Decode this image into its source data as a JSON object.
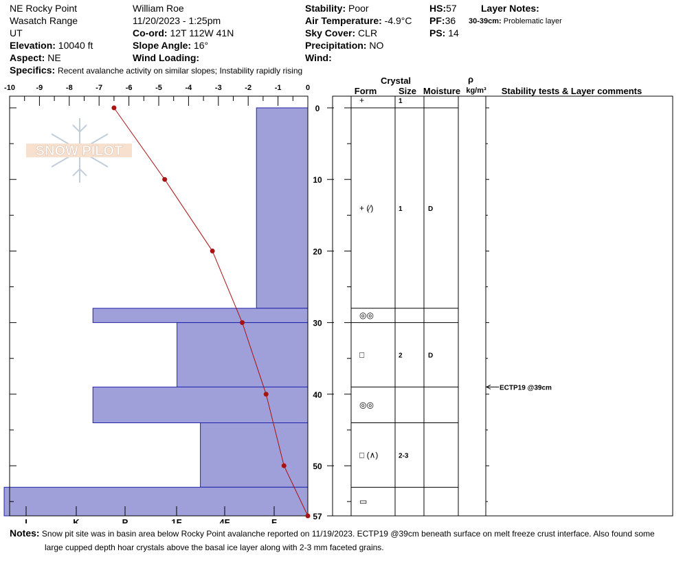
{
  "header": {
    "site": "NE Rocky Point",
    "range": "Wasatch Range",
    "state": "UT",
    "elevation_label": "Elevation:",
    "elevation": "10040 ft",
    "aspect_label": "Aspect:",
    "aspect": "NE",
    "observer": "William  Roe",
    "datetime": "11/20/2023 - 1:25pm",
    "coord_label": "Co-ord:",
    "coord": "12T 112W 41N",
    "slope_label": "Slope Angle:",
    "slope": "16°",
    "wind_loading_label": "Wind Loading:",
    "wind_loading": "",
    "stability_label": "Stability:",
    "stability": "Poor",
    "air_temp_label": "Air Temperature:",
    "air_temp": "-4.9°C",
    "sky_label": "Sky Cover:",
    "sky": "CLR",
    "precip_label": "Precipitation:",
    "precip": "NO",
    "wind_label": "Wind:",
    "wind": "",
    "hs_label": "HS:",
    "hs": "57",
    "pf_label": "PF:",
    "pf": "36",
    "ps_label": "PS:",
    "ps": "14",
    "layer_notes_label": "Layer Notes:",
    "layer_note_range": "30-39cm:",
    "layer_note_text": "Problematic layer",
    "specifics_label": "Specifics:",
    "specifics": "Recent avalanche activity on similar slopes; Instability rapidly rising"
  },
  "chart_data": {
    "type": "snow_profile",
    "temperature_profile": {
      "x_label_ticks": [
        "-10",
        "-9",
        "-8",
        "-7",
        "-6",
        "-5",
        "-4",
        "-3",
        "-2",
        "-1",
        "0"
      ],
      "xlim": [
        -10,
        0
      ],
      "depth_cm": [
        0,
        10,
        20,
        30,
        40,
        50,
        57
      ],
      "temp_c": [
        -6.5,
        -4.8,
        -3.2,
        -2.2,
        -1.4,
        -0.8,
        0
      ],
      "color": "#aa1111"
    },
    "hardness_profile": {
      "hardness_ticks": [
        "I",
        "K",
        "P",
        "1F",
        "4F",
        "F"
      ],
      "layers": [
        {
          "top": 0,
          "bottom": 28,
          "hardness_index": 1.1
        },
        {
          "top": 28,
          "bottom": 30,
          "hardness_index": 4.6
        },
        {
          "top": 30,
          "bottom": 39,
          "hardness_index": 2.8
        },
        {
          "top": 39,
          "bottom": 44,
          "hardness_index": 4.6
        },
        {
          "top": 44,
          "bottom": 53,
          "hardness_index": 2.3
        },
        {
          "top": 53,
          "bottom": 57,
          "hardness_index": 6.5
        }
      ],
      "fill": "#9f9fd9",
      "stroke": "#2222aa"
    },
    "depth_axis": {
      "ticks": [
        "0",
        "10",
        "20",
        "30",
        "40",
        "50",
        "57"
      ],
      "max": 57
    },
    "crystal_table": {
      "headers": {
        "crystal": "Crystal",
        "form": "Form",
        "size": "Size",
        "moisture": "Moisture",
        "density_symbol": "ρ",
        "density_unit": "kg/m³",
        "comments": "Stability tests & Layer comments"
      },
      "rows": [
        {
          "top": 0,
          "bottom": 0,
          "mid": -1,
          "form": "+",
          "size": "1",
          "moisture": ""
        },
        {
          "top": 0,
          "bottom": 28,
          "mid": 14,
          "form": "+ (⁄)",
          "size": "1",
          "moisture": "D"
        },
        {
          "top": 28,
          "bottom": 30,
          "mid": 29,
          "form": "◎◎",
          "size": "",
          "moisture": ""
        },
        {
          "top": 30,
          "bottom": 39,
          "mid": 34.5,
          "form": "□",
          "size": "2",
          "moisture": "D"
        },
        {
          "top": 39,
          "bottom": 44,
          "mid": 41.5,
          "form": "◎◎",
          "size": "",
          "moisture": ""
        },
        {
          "top": 44,
          "bottom": 53,
          "mid": 48.5,
          "form": "□ (∧)",
          "size": "2-3",
          "moisture": ""
        },
        {
          "top": 53,
          "bottom": 57,
          "mid": 55,
          "form": "▭",
          "size": "",
          "moisture": ""
        }
      ],
      "stability_tests": [
        {
          "depth": 39,
          "label": "ECTP19 @39cm"
        }
      ]
    }
  },
  "watermark": "SNOW PILOT",
  "notes": {
    "label": "Notes:",
    "line1": "Snow pit site was in basin area below Rocky Point avalanche reported on 11/19/2023. ECTP19 @39cm beneath surface on melt freeze crust interface. Also found some",
    "line2": "large cupped depth hoar crystals above the basal ice layer along with 2-3 mm faceted grains."
  }
}
